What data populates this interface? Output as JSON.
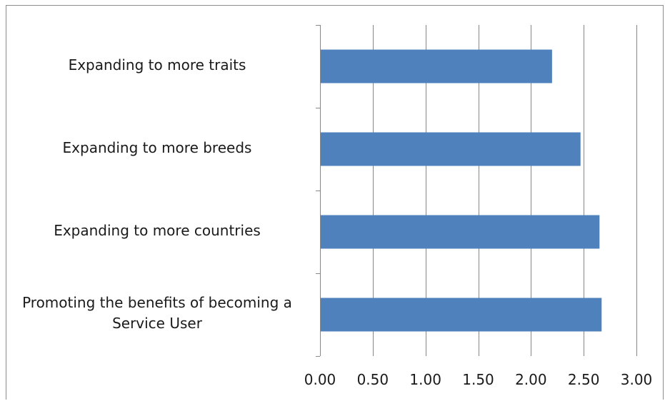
{
  "chart_data": {
    "type": "bar",
    "orientation": "horizontal",
    "categories": [
      "Expanding to more traits",
      "Expanding to more breeds",
      "Expanding to more countries",
      "Promoting the benefits of becoming a Service User"
    ],
    "category_label_lines": [
      [
        "Expanding to more traits"
      ],
      [
        "Expanding to more breeds"
      ],
      [
        "Expanding to more countries"
      ],
      [
        "Promoting the benefits of becoming a",
        "Service User"
      ]
    ],
    "values": [
      2.2,
      2.47,
      2.65,
      2.67
    ],
    "xlim": [
      0,
      3
    ],
    "xticks": [
      "0.00",
      "0.50",
      "1.00",
      "1.50",
      "2.00",
      "2.50",
      "3.00"
    ],
    "xtick_values": [
      0,
      0.5,
      1,
      1.5,
      2,
      2.5,
      3
    ],
    "grid": "vertical",
    "legend": "none",
    "title": "",
    "xlabel": "",
    "ylabel": "",
    "colors": {
      "bar": "#4f81bd",
      "grid": "#878787",
      "axis": "#878787",
      "frame": "#8c8c8c"
    }
  }
}
